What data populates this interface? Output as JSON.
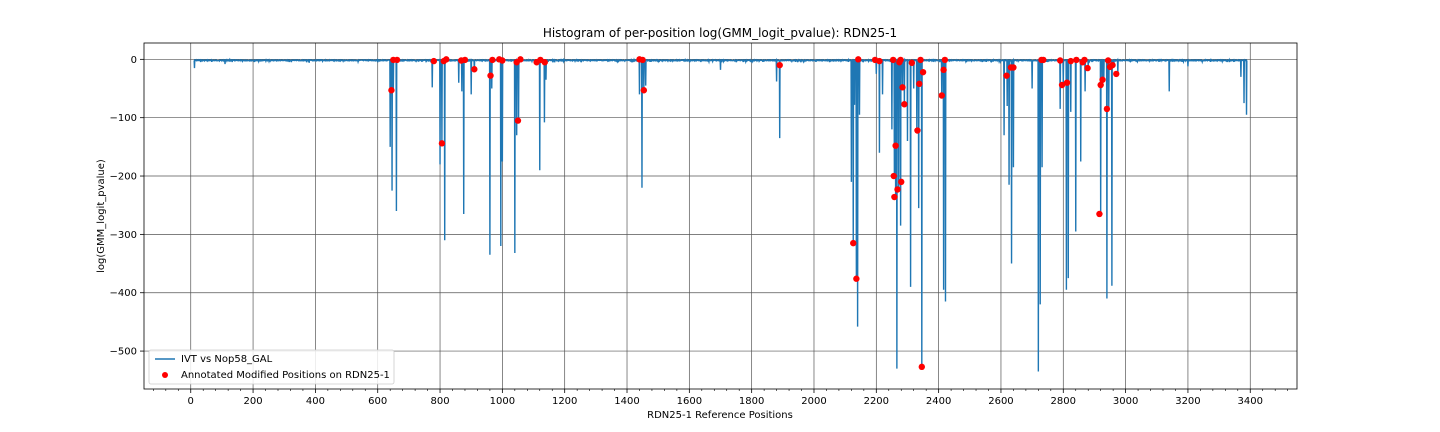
{
  "chart_data": {
    "type": "line",
    "title": "Histogram of per-position log(GMM_logit_pvalue): RDN25-1",
    "xlabel": "RDN25-1 Reference Positions",
    "ylabel": "log(GMM_logit_pvalue)",
    "xlim": [
      -150,
      3550
    ],
    "ylim": [
      -565,
      28
    ],
    "x_ticks": [
      0,
      200,
      400,
      600,
      800,
      1000,
      1200,
      1400,
      1600,
      1800,
      2000,
      2200,
      2400,
      2600,
      2800,
      3000,
      3200,
      3400
    ],
    "x_tick_labels": [
      "0",
      "200",
      "400",
      "600",
      "800",
      "1000",
      "1200",
      "1400",
      "1600",
      "1800",
      "2000",
      "2200",
      "2400",
      "2600",
      "2800",
      "3000",
      "3200",
      "3400"
    ],
    "x_minor_step": 40,
    "y_ticks": [
      0,
      -100,
      -200,
      -300,
      -400,
      -500
    ],
    "y_tick_labels": [
      "0",
      "−100",
      "−200",
      "−300",
      "−400",
      "−500"
    ],
    "grid": true,
    "legend_position": "lower-left",
    "series": [
      {
        "name": "IVT vs Nop58_GAL",
        "kind": "line",
        "color": "#1f77b4",
        "x_range": [
          10,
          3390
        ],
        "baseline": -1,
        "spikes": [
          {
            "x": 12,
            "y": -15
          },
          {
            "x": 110,
            "y": -8
          },
          {
            "x": 380,
            "y": -6
          },
          {
            "x": 640,
            "y": -150
          },
          {
            "x": 646,
            "y": -225
          },
          {
            "x": 650,
            "y": -55
          },
          {
            "x": 660,
            "y": -260
          },
          {
            "x": 775,
            "y": -48
          },
          {
            "x": 800,
            "y": -180
          },
          {
            "x": 806,
            "y": -145
          },
          {
            "x": 815,
            "y": -310
          },
          {
            "x": 860,
            "y": -40
          },
          {
            "x": 870,
            "y": -55
          },
          {
            "x": 876,
            "y": -265
          },
          {
            "x": 900,
            "y": -60
          },
          {
            "x": 910,
            "y": -20
          },
          {
            "x": 960,
            "y": -335
          },
          {
            "x": 966,
            "y": -50
          },
          {
            "x": 995,
            "y": -320
          },
          {
            "x": 1000,
            "y": -175
          },
          {
            "x": 1040,
            "y": -332
          },
          {
            "x": 1046,
            "y": -130
          },
          {
            "x": 1052,
            "y": -105
          },
          {
            "x": 1120,
            "y": -190
          },
          {
            "x": 1135,
            "y": -108
          },
          {
            "x": 1140,
            "y": -35
          },
          {
            "x": 1440,
            "y": -60
          },
          {
            "x": 1448,
            "y": -220
          },
          {
            "x": 1454,
            "y": -55
          },
          {
            "x": 1460,
            "y": -45
          },
          {
            "x": 1700,
            "y": -18
          },
          {
            "x": 1880,
            "y": -38
          },
          {
            "x": 1890,
            "y": -135
          },
          {
            "x": 2120,
            "y": -210
          },
          {
            "x": 2126,
            "y": -320
          },
          {
            "x": 2130,
            "y": -78
          },
          {
            "x": 2136,
            "y": -380
          },
          {
            "x": 2140,
            "y": -458
          },
          {
            "x": 2146,
            "y": -95
          },
          {
            "x": 2200,
            "y": -25
          },
          {
            "x": 2210,
            "y": -160
          },
          {
            "x": 2220,
            "y": -60
          },
          {
            "x": 2250,
            "y": -120
          },
          {
            "x": 2258,
            "y": -200
          },
          {
            "x": 2262,
            "y": -235
          },
          {
            "x": 2266,
            "y": -530
          },
          {
            "x": 2272,
            "y": -225
          },
          {
            "x": 2278,
            "y": -285
          },
          {
            "x": 2284,
            "y": -48
          },
          {
            "x": 2290,
            "y": -78
          },
          {
            "x": 2300,
            "y": -140
          },
          {
            "x": 2310,
            "y": -390
          },
          {
            "x": 2320,
            "y": -50
          },
          {
            "x": 2330,
            "y": -125
          },
          {
            "x": 2336,
            "y": -255
          },
          {
            "x": 2340,
            "y": -42
          },
          {
            "x": 2346,
            "y": -530
          },
          {
            "x": 2410,
            "y": -62
          },
          {
            "x": 2416,
            "y": -395
          },
          {
            "x": 2422,
            "y": -415
          },
          {
            "x": 2610,
            "y": -130
          },
          {
            "x": 2620,
            "y": -80
          },
          {
            "x": 2626,
            "y": -215
          },
          {
            "x": 2634,
            "y": -350
          },
          {
            "x": 2640,
            "y": -185
          },
          {
            "x": 2700,
            "y": -50
          },
          {
            "x": 2720,
            "y": -535
          },
          {
            "x": 2726,
            "y": -420
          },
          {
            "x": 2732,
            "y": -185
          },
          {
            "x": 2790,
            "y": -85
          },
          {
            "x": 2800,
            "y": -40
          },
          {
            "x": 2810,
            "y": -395
          },
          {
            "x": 2816,
            "y": -375
          },
          {
            "x": 2824,
            "y": -90
          },
          {
            "x": 2840,
            "y": -295
          },
          {
            "x": 2856,
            "y": -175
          },
          {
            "x": 2870,
            "y": -55
          },
          {
            "x": 2880,
            "y": -12
          },
          {
            "x": 2920,
            "y": -265
          },
          {
            "x": 2926,
            "y": -45
          },
          {
            "x": 2930,
            "y": -38
          },
          {
            "x": 2940,
            "y": -410
          },
          {
            "x": 2946,
            "y": -85
          },
          {
            "x": 2956,
            "y": -388
          },
          {
            "x": 2962,
            "y": -12
          },
          {
            "x": 2975,
            "y": -25
          },
          {
            "x": 3140,
            "y": -55
          },
          {
            "x": 3200,
            "y": -12
          },
          {
            "x": 3370,
            "y": -30
          },
          {
            "x": 3380,
            "y": -75
          },
          {
            "x": 3388,
            "y": -95
          }
        ]
      },
      {
        "name": "Annotated Modified Positions on RDN25-1",
        "kind": "scatter",
        "color": "#ff0000",
        "points": [
          {
            "x": 644,
            "y": -53
          },
          {
            "x": 650,
            "y": -1
          },
          {
            "x": 662,
            "y": -1
          },
          {
            "x": 780,
            "y": -3
          },
          {
            "x": 806,
            "y": -144
          },
          {
            "x": 812,
            "y": -3
          },
          {
            "x": 820,
            "y": 0
          },
          {
            "x": 868,
            "y": -2
          },
          {
            "x": 880,
            "y": -1
          },
          {
            "x": 910,
            "y": -17
          },
          {
            "x": 962,
            "y": -28
          },
          {
            "x": 968,
            "y": -1
          },
          {
            "x": 990,
            "y": 0
          },
          {
            "x": 1000,
            "y": -2
          },
          {
            "x": 1046,
            "y": -5
          },
          {
            "x": 1050,
            "y": -105
          },
          {
            "x": 1058,
            "y": 0
          },
          {
            "x": 1110,
            "y": -5
          },
          {
            "x": 1122,
            "y": -1
          },
          {
            "x": 1136,
            "y": -5
          },
          {
            "x": 1440,
            "y": 0
          },
          {
            "x": 1450,
            "y": -1
          },
          {
            "x": 1454,
            "y": -53
          },
          {
            "x": 1890,
            "y": -10
          },
          {
            "x": 2126,
            "y": -315
          },
          {
            "x": 2136,
            "y": -376
          },
          {
            "x": 2142,
            "y": 0
          },
          {
            "x": 2196,
            "y": -1
          },
          {
            "x": 2210,
            "y": -3
          },
          {
            "x": 2254,
            "y": -1
          },
          {
            "x": 2256,
            "y": -200
          },
          {
            "x": 2258,
            "y": -236
          },
          {
            "x": 2262,
            "y": -148
          },
          {
            "x": 2268,
            "y": -223
          },
          {
            "x": 2274,
            "y": -5
          },
          {
            "x": 2278,
            "y": -1
          },
          {
            "x": 2280,
            "y": -210
          },
          {
            "x": 2284,
            "y": -48
          },
          {
            "x": 2290,
            "y": -77
          },
          {
            "x": 2314,
            "y": -6
          },
          {
            "x": 2332,
            "y": -122
          },
          {
            "x": 2338,
            "y": -42
          },
          {
            "x": 2342,
            "y": -1
          },
          {
            "x": 2346,
            "y": -527
          },
          {
            "x": 2350,
            "y": -22
          },
          {
            "x": 2410,
            "y": -62
          },
          {
            "x": 2416,
            "y": -18
          },
          {
            "x": 2420,
            "y": -1
          },
          {
            "x": 2618,
            "y": -28
          },
          {
            "x": 2632,
            "y": -14
          },
          {
            "x": 2640,
            "y": -14
          },
          {
            "x": 2730,
            "y": -1
          },
          {
            "x": 2736,
            "y": -1
          },
          {
            "x": 2790,
            "y": -2
          },
          {
            "x": 2796,
            "y": -44
          },
          {
            "x": 2812,
            "y": -40
          },
          {
            "x": 2824,
            "y": -3
          },
          {
            "x": 2842,
            "y": -1
          },
          {
            "x": 2862,
            "y": -5
          },
          {
            "x": 2868,
            "y": -1
          },
          {
            "x": 2878,
            "y": -15
          },
          {
            "x": 2916,
            "y": -265
          },
          {
            "x": 2920,
            "y": -44
          },
          {
            "x": 2926,
            "y": -35
          },
          {
            "x": 2940,
            "y": -85
          },
          {
            "x": 2944,
            "y": -2
          },
          {
            "x": 2950,
            "y": -13
          },
          {
            "x": 2958,
            "y": -10
          },
          {
            "x": 2970,
            "y": -25
          }
        ]
      }
    ]
  }
}
